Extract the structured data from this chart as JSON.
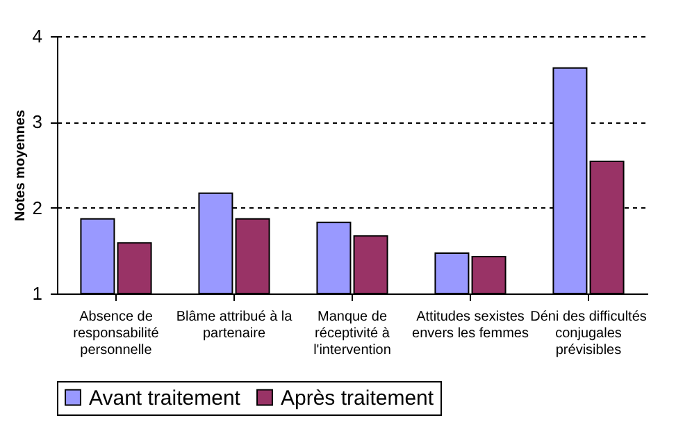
{
  "chart_data": {
    "type": "bar",
    "ylabel": "Notes moyennes",
    "categories": [
      "Absence de\nresponsabilité\npersonnelle",
      "Blâme attribué à la\npartenaire",
      "Manque de\nréceptivité à\nl'intervention",
      "Attitudes sexistes\nenvers les femmes",
      "Déni des difficultés\nconjugales\nprévisibles"
    ],
    "series": [
      {
        "name": "Avant traitement",
        "color": "#9999ff",
        "values": [
          1.87,
          2.17,
          1.83,
          1.47,
          3.63
        ]
      },
      {
        "name": "Après traitement",
        "color": "#993366",
        "values": [
          1.59,
          1.87,
          1.67,
          1.43,
          2.54
        ]
      }
    ],
    "ylim": [
      1,
      4
    ],
    "yticks": [
      1,
      2,
      3,
      4
    ],
    "grid": "y",
    "legend": "bottom"
  }
}
